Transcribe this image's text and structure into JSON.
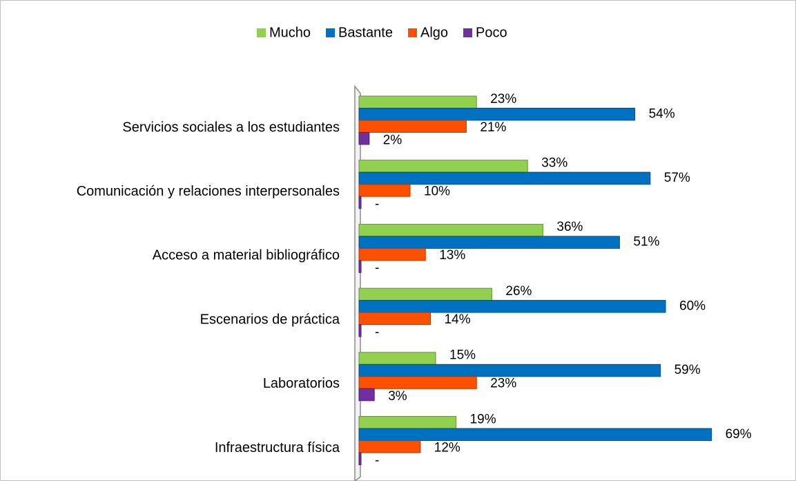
{
  "chart_data": {
    "type": "bar",
    "orientation": "horizontal",
    "categories": [
      "Servicios sociales a los estudiantes",
      "Comunicación y relaciones interpersonales",
      "Acceso a material bibliográfico",
      "Escenarios de práctica",
      "Laboratorios",
      "Infraestructura física"
    ],
    "series": [
      {
        "name": "Mucho",
        "color": "#92d050",
        "values": [
          23,
          33,
          36,
          26,
          15,
          19
        ],
        "value_labels": [
          "23%",
          "33%",
          "36%",
          "26%",
          "15%",
          "19%"
        ]
      },
      {
        "name": "Bastante",
        "color": "#0070c0",
        "values": [
          54,
          57,
          51,
          60,
          59,
          69
        ],
        "value_labels": [
          "54%",
          "57%",
          "51%",
          "60%",
          "59%",
          "69%"
        ]
      },
      {
        "name": "Algo",
        "color": "#fe5000",
        "values": [
          21,
          10,
          13,
          14,
          23,
          12
        ],
        "value_labels": [
          "21%",
          "10%",
          "13%",
          "14%",
          "23%",
          "12%"
        ]
      },
      {
        "name": "Poco",
        "color": "#7030a0",
        "values": [
          2,
          0,
          0,
          0,
          3,
          0
        ],
        "value_labels": [
          "2%",
          "-",
          "-",
          "-",
          "3%",
          "-"
        ]
      }
    ],
    "xlim": [
      0,
      70
    ],
    "legend": "top"
  }
}
